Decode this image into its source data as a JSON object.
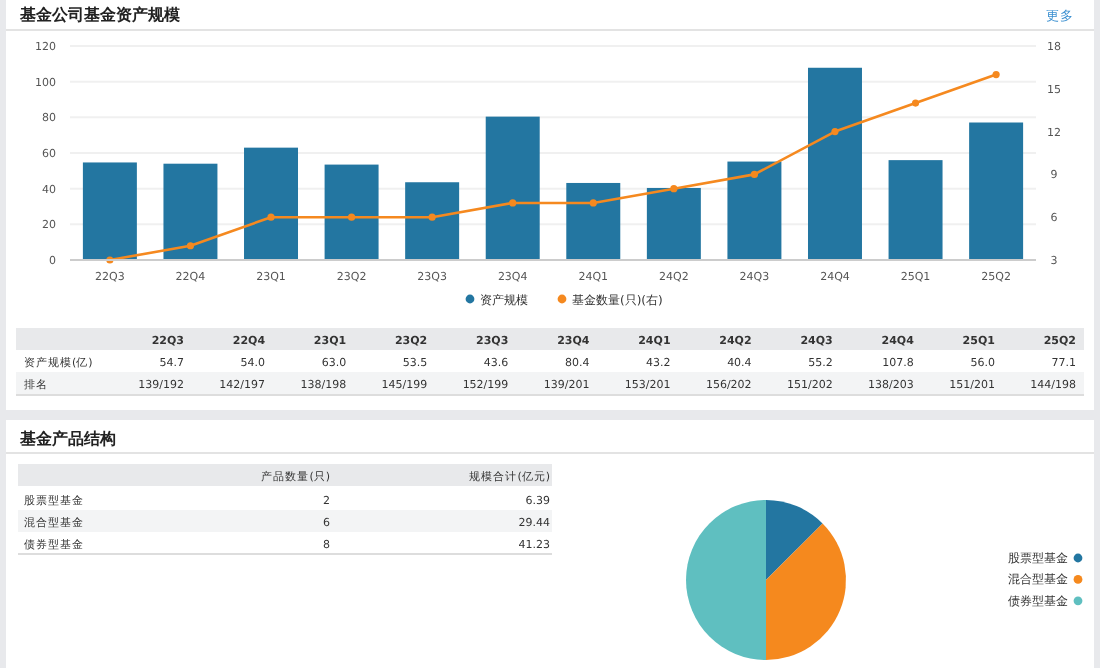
{
  "chart_data": [
    {
      "type": "bar",
      "title": "基金公司基金资产规模",
      "categories": [
        "22Q3",
        "22Q4",
        "23Q1",
        "23Q2",
        "23Q3",
        "23Q4",
        "24Q1",
        "24Q2",
        "24Q3",
        "24Q4",
        "25Q1",
        "25Q2"
      ],
      "series": [
        {
          "name": "资产规模",
          "color": "#2376a1",
          "values": [
            54.7,
            54.0,
            63.0,
            53.5,
            43.6,
            80.4,
            43.2,
            40.4,
            55.2,
            107.8,
            56.0,
            77.1
          ]
        },
        {
          "name": "基金数量(只)(右)",
          "type": "line",
          "axis": "y2",
          "color": "#f5891f",
          "marker": "circle",
          "values": [
            3,
            4,
            6,
            6,
            6,
            7,
            7,
            8,
            9,
            12,
            14,
            16
          ]
        }
      ],
      "ylim": [
        0,
        120
      ],
      "yticks": [
        0,
        20,
        40,
        60,
        80,
        100,
        120
      ],
      "y2lim": [
        3,
        18
      ],
      "y2ticks": [
        3,
        6,
        9,
        12,
        15,
        18
      ],
      "grid": "y",
      "legend": "bottom",
      "annotations": [
        "更多",
        "资产规模(亿)",
        "54.7",
        "54.0",
        "63.0",
        "53.5",
        "43.6",
        "80.4",
        "43.2",
        "40.4",
        "55.2",
        "107.8",
        "56.0",
        "77.1",
        "排名",
        "139/192",
        "142/197",
        "138/198",
        "145/199",
        "152/199",
        "139/201",
        "153/201",
        "156/202",
        "151/202",
        "138/203",
        "151/201",
        "144/198"
      ]
    },
    {
      "type": "other",
      "title": "基金产品结构",
      "annotations": [
        "产品数量(只)",
        "规模合计(亿元)",
        "股票型基金",
        "2",
        "6.39",
        "混合型基金",
        "6",
        "29.44",
        "债券型基金",
        "8",
        "41.23"
      ]
    },
    {
      "type": "pie",
      "categories": [
        "股票型基金",
        "混合型基金",
        "债券型基金"
      ],
      "values": [
        12.5,
        37.5,
        50
      ],
      "colors": [
        "#2376a1",
        "#f5891e",
        "#5fbfc0"
      ],
      "legend": "right"
    }
  ]
}
